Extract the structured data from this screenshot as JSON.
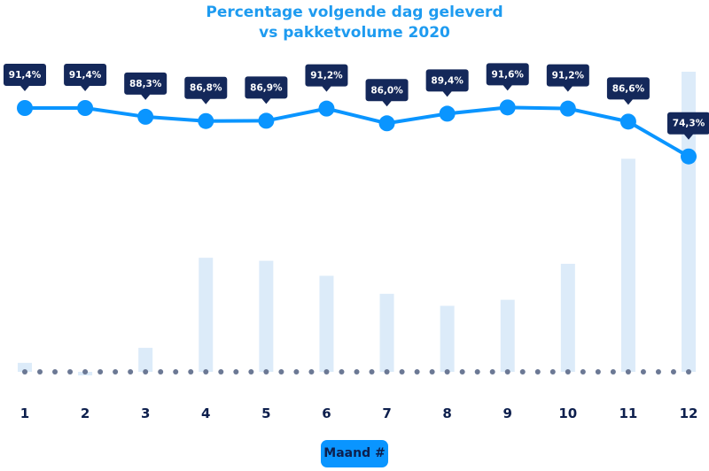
{
  "chart_data": {
    "type": "line",
    "title": "Percentage volgende dag geleverd",
    "subtitle": "vs pakketvolume 2020",
    "xlabel": "Maand #",
    "categories": [
      "1",
      "2",
      "3",
      "4",
      "5",
      "6",
      "7",
      "8",
      "9",
      "10",
      "11",
      "12"
    ],
    "series": [
      {
        "type": "line",
        "values": [
          91.4,
          91.4,
          88.3,
          86.8,
          86.9,
          91.2,
          86.0,
          89.4,
          91.6,
          91.2,
          86.6,
          74.3
        ],
        "labels": [
          "91,4%",
          "91,4%",
          "88,3%",
          "86,8%",
          "86,9%",
          "91,2%",
          "86,0%",
          "89,4%",
          "91,6%",
          "91,2%",
          "86,6%",
          "74,3%"
        ],
        "color": "#0a95ff"
      },
      {
        "type": "bar",
        "values": [
          3,
          -1,
          8,
          38,
          37,
          32,
          26,
          22,
          24,
          36,
          71,
          100
        ],
        "color": "#dcebf9"
      }
    ],
    "grid": false,
    "label_box_color": "#14285a",
    "baseline_dot_color": "#6b7894"
  }
}
